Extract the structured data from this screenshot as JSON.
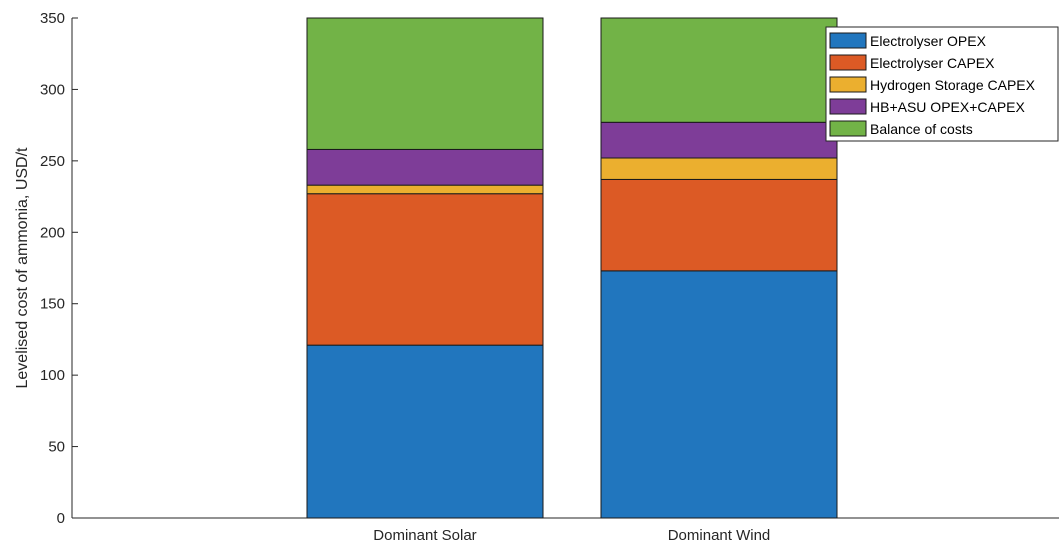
{
  "chart_data": {
    "type": "bar",
    "stacked": true,
    "categories": [
      "Dominant Solar",
      "Dominant Wind"
    ],
    "ylabel": "Levelised cost of ammonia, USD/t",
    "ylim": [
      0,
      350
    ],
    "yticks": [
      0,
      50,
      100,
      150,
      200,
      250,
      300,
      350
    ],
    "legend_position": "top-right",
    "series": [
      {
        "name": "Electrolyser OPEX",
        "color": "#2176BE",
        "values": [
          121,
          173
        ]
      },
      {
        "name": "Electrolyser CAPEX",
        "color": "#DC5A25",
        "values": [
          106,
          64
        ]
      },
      {
        "name": "Hydrogen Storage CAPEX",
        "color": "#EBAF2F",
        "values": [
          6,
          15
        ]
      },
      {
        "name": "HB+ASU OPEX+CAPEX",
        "color": "#7E3D98",
        "values": [
          25,
          25
        ]
      },
      {
        "name": "Balance of costs",
        "color": "#72B347",
        "values": [
          92,
          73
        ]
      }
    ]
  }
}
